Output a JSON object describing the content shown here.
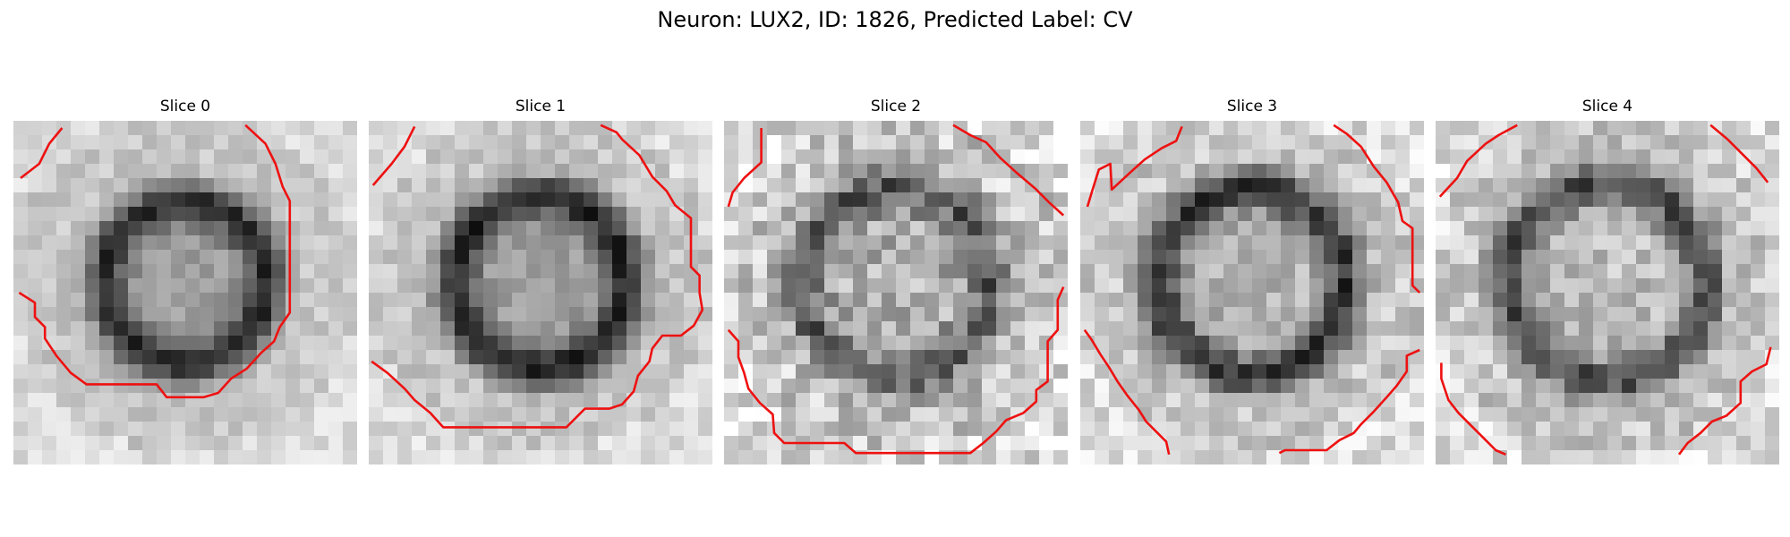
{
  "figure": {
    "title": "Neuron: LUX2, ID: 1826, Predicted Label: CV",
    "contour_color": "#ee1111",
    "panels": [
      {
        "label": "Slice 0",
        "seed": 11,
        "center_level": 0.62,
        "ring_level": 0.16,
        "ring_radius": 0.47,
        "noise": 0.08
      },
      {
        "label": "Slice 1",
        "seed": 23,
        "center_level": 0.63,
        "ring_level": 0.14,
        "ring_radius": 0.5,
        "noise": 0.09
      },
      {
        "label": "Slice 2",
        "seed": 37,
        "center_level": 0.68,
        "ring_level": 0.34,
        "ring_radius": 0.55,
        "noise": 0.18
      },
      {
        "label": "Slice 3",
        "seed": 41,
        "center_level": 0.7,
        "ring_level": 0.2,
        "ring_radius": 0.54,
        "noise": 0.13
      },
      {
        "label": "Slice 4",
        "seed": 53,
        "center_level": 0.74,
        "ring_level": 0.28,
        "ring_radius": 0.57,
        "noise": 0.14
      }
    ]
  }
}
